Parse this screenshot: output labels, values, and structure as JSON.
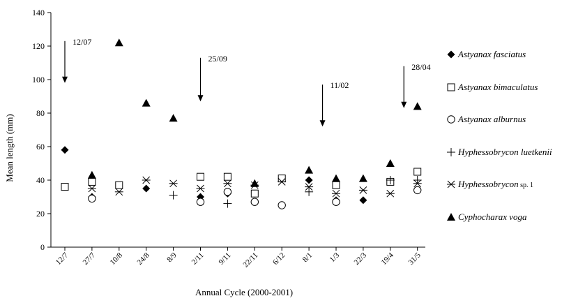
{
  "chart_data": {
    "type": "scatter",
    "title": "",
    "xlabel": "Annual Cycle (2000-2001)",
    "ylabel": "Mean length (mm)",
    "ylim": [
      0,
      140
    ],
    "yticks": [
      0,
      20,
      40,
      60,
      80,
      100,
      120,
      140
    ],
    "grid": false,
    "legend_position": "right",
    "categories": [
      "12/7",
      "27/7",
      "10/8",
      "24/8",
      "8/9",
      "2/11",
      "9/11",
      "22/11",
      "6/12",
      "8/1",
      "1/3",
      "22/3",
      "19/4",
      "31/5"
    ],
    "series": [
      {
        "name": "Astyanax fasciatus",
        "marker": "diamond",
        "values": [
          58,
          30,
          null,
          35,
          null,
          30,
          32,
          null,
          41,
          40,
          28,
          28,
          null,
          null
        ]
      },
      {
        "name": "Astyanax bimaculatus",
        "marker": "square-open",
        "values": [
          36,
          39,
          37,
          null,
          null,
          42,
          42,
          32,
          41,
          null,
          37,
          null,
          39,
          45
        ]
      },
      {
        "name": "Astyanax alburnus",
        "marker": "circle-open",
        "values": [
          null,
          29,
          null,
          null,
          null,
          27,
          33,
          27,
          25,
          null,
          27,
          null,
          null,
          34
        ]
      },
      {
        "name": "Hyphessobrycon luetkenii",
        "marker": "plus",
        "values": [
          null,
          null,
          null,
          null,
          31,
          null,
          26,
          null,
          null,
          33,
          null,
          null,
          40,
          40
        ]
      },
      {
        "name": "Hyphessobrycon",
        "name_suffix": "sp. 1",
        "marker": "asterisk",
        "values": [
          null,
          35,
          33,
          40,
          38,
          35,
          38,
          37,
          39,
          36,
          32,
          34,
          32,
          38
        ]
      },
      {
        "name": "Cyphocharax voga",
        "marker": "triangle",
        "values": [
          null,
          43,
          122,
          86,
          77,
          null,
          null,
          38,
          null,
          46,
          41,
          41,
          50,
          84
        ]
      }
    ],
    "annotations": [
      {
        "text": "12/07",
        "category_index": 0,
        "arrow_from": 123,
        "arrow_to": 98
      },
      {
        "text": "25/09",
        "category_index": 5,
        "arrow_from": 113,
        "arrow_to": 87
      },
      {
        "text": "11/02",
        "category_index": 9.5,
        "arrow_from": 97,
        "arrow_to": 72
      },
      {
        "text": "28/04",
        "category_index": 12.5,
        "arrow_from": 108,
        "arrow_to": 83
      }
    ]
  }
}
